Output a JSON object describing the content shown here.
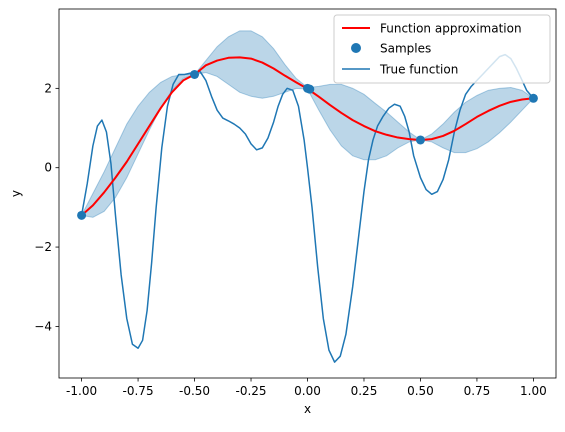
{
  "chart_data": {
    "type": "line",
    "title": "",
    "xlabel": "x",
    "ylabel": "y",
    "xlim": [
      -1.1,
      1.1
    ],
    "ylim": [
      -5.3,
      4.0
    ],
    "grid": false,
    "legend_placement": "top-right",
    "xticks": [
      "-1.00",
      "-0.75",
      "-0.50",
      "-0.25",
      "0.00",
      "0.25",
      "0.50",
      "0.75",
      "1.00"
    ],
    "xtick_values": [
      -1.0,
      -0.75,
      -0.5,
      -0.25,
      0.0,
      0.25,
      0.5,
      0.75,
      1.0
    ],
    "yticks": [
      "−4",
      "−2",
      "0",
      "2"
    ],
    "ytick_values": [
      -4,
      -2,
      0,
      2
    ],
    "series": [
      {
        "name": "Function approximation",
        "color": "#ff0000",
        "kind": "line",
        "x": [
          -1.0,
          -0.95,
          -0.9,
          -0.85,
          -0.8,
          -0.75,
          -0.7,
          -0.65,
          -0.6,
          -0.55,
          -0.5,
          -0.45,
          -0.4,
          -0.35,
          -0.3,
          -0.25,
          -0.2,
          -0.15,
          -0.1,
          -0.05,
          0.0,
          0.05,
          0.1,
          0.15,
          0.2,
          0.25,
          0.3,
          0.35,
          0.4,
          0.45,
          0.5,
          0.55,
          0.6,
          0.65,
          0.7,
          0.75,
          0.8,
          0.85,
          0.9,
          0.95,
          1.0
        ],
        "y": [
          -1.2,
          -0.95,
          -0.62,
          -0.25,
          0.15,
          0.6,
          1.05,
          1.5,
          1.9,
          2.2,
          2.35,
          2.58,
          2.7,
          2.77,
          2.78,
          2.75,
          2.65,
          2.5,
          2.32,
          2.15,
          1.99,
          1.79,
          1.58,
          1.38,
          1.2,
          1.05,
          0.92,
          0.83,
          0.76,
          0.72,
          0.7,
          0.72,
          0.8,
          0.93,
          1.1,
          1.28,
          1.43,
          1.56,
          1.66,
          1.72,
          1.75
        ]
      },
      {
        "name": "Samples",
        "color": "#1f77b4",
        "kind": "scatter",
        "x": [
          -1.0,
          -0.5,
          0.0,
          0.01,
          0.5,
          1.0
        ],
        "y": [
          -1.2,
          2.35,
          2.0,
          1.98,
          0.7,
          1.75
        ]
      },
      {
        "name": "True function",
        "color": "#1f77b4",
        "kind": "line",
        "x": [
          -1.0,
          -0.975,
          -0.95,
          -0.93,
          -0.91,
          -0.89,
          -0.87,
          -0.85,
          -0.825,
          -0.8,
          -0.775,
          -0.75,
          -0.73,
          -0.71,
          -0.69,
          -0.67,
          -0.645,
          -0.62,
          -0.595,
          -0.57,
          -0.545,
          -0.52,
          -0.5,
          -0.475,
          -0.45,
          -0.425,
          -0.4,
          -0.375,
          -0.35,
          -0.325,
          -0.3,
          -0.275,
          -0.25,
          -0.225,
          -0.2,
          -0.175,
          -0.15,
          -0.13,
          -0.11,
          -0.09,
          -0.065,
          -0.04,
          -0.015,
          0.0,
          0.02,
          0.045,
          0.07,
          0.095,
          0.12,
          0.145,
          0.17,
          0.2,
          0.225,
          0.25,
          0.27,
          0.29,
          0.31,
          0.335,
          0.36,
          0.385,
          0.41,
          0.43,
          0.45,
          0.47,
          0.5,
          0.525,
          0.55,
          0.575,
          0.6,
          0.625,
          0.65,
          0.675,
          0.7,
          0.725,
          0.75,
          0.775,
          0.8,
          0.825,
          0.85,
          0.875,
          0.9,
          0.925,
          0.95,
          0.97,
          1.0
        ],
        "y": [
          -1.2,
          -0.4,
          0.55,
          1.05,
          1.2,
          0.9,
          0.1,
          -1.2,
          -2.7,
          -3.8,
          -4.45,
          -4.55,
          -4.35,
          -3.6,
          -2.4,
          -1.0,
          0.5,
          1.55,
          2.1,
          2.35,
          2.35,
          2.38,
          2.4,
          2.42,
          2.2,
          1.8,
          1.45,
          1.25,
          1.18,
          1.1,
          1.0,
          0.85,
          0.6,
          0.45,
          0.5,
          0.75,
          1.15,
          1.55,
          1.85,
          2.0,
          1.95,
          1.55,
          0.7,
          0.0,
          -1.0,
          -2.5,
          -3.8,
          -4.6,
          -4.9,
          -4.75,
          -4.2,
          -3.0,
          -1.8,
          -0.6,
          0.2,
          0.7,
          1.05,
          1.3,
          1.5,
          1.6,
          1.55,
          1.3,
          0.9,
          0.3,
          -0.25,
          -0.55,
          -0.67,
          -0.6,
          -0.3,
          0.2,
          0.9,
          1.45,
          1.85,
          2.05,
          2.2,
          2.35,
          2.5,
          2.65,
          2.8,
          2.85,
          2.75,
          2.5,
          2.2,
          1.95,
          1.75
        ]
      },
      {
        "name": "",
        "color": "#1f77b4",
        "kind": "band",
        "opacity": 0.3,
        "x": [
          -1.0,
          -0.95,
          -0.9,
          -0.85,
          -0.8,
          -0.75,
          -0.7,
          -0.65,
          -0.6,
          -0.55,
          -0.5,
          -0.45,
          -0.4,
          -0.35,
          -0.3,
          -0.25,
          -0.2,
          -0.15,
          -0.1,
          -0.05,
          0.0,
          0.05,
          0.1,
          0.15,
          0.2,
          0.25,
          0.3,
          0.35,
          0.4,
          0.45,
          0.5,
          0.55,
          0.6,
          0.65,
          0.7,
          0.75,
          0.8,
          0.85,
          0.9,
          0.95,
          1.0
        ],
        "lower": [
          -1.2,
          -1.25,
          -1.1,
          -0.75,
          -0.25,
          0.35,
          0.95,
          1.5,
          1.95,
          2.25,
          2.35,
          2.4,
          2.3,
          2.1,
          1.9,
          1.8,
          1.75,
          1.8,
          1.9,
          2.0,
          1.98,
          1.45,
          0.95,
          0.55,
          0.3,
          0.2,
          0.2,
          0.3,
          0.5,
          0.65,
          0.7,
          0.65,
          0.5,
          0.38,
          0.38,
          0.48,
          0.65,
          0.88,
          1.15,
          1.45,
          1.75
        ],
        "upper": [
          -1.2,
          -0.65,
          -0.1,
          0.5,
          1.1,
          1.55,
          1.9,
          2.15,
          2.3,
          2.35,
          2.35,
          2.7,
          3.05,
          3.3,
          3.45,
          3.45,
          3.3,
          3.0,
          2.6,
          2.25,
          2.02,
          2.05,
          2.1,
          2.1,
          2.0,
          1.85,
          1.62,
          1.4,
          1.15,
          0.9,
          0.7,
          0.85,
          1.1,
          1.4,
          1.65,
          1.82,
          1.95,
          2.0,
          2.02,
          1.95,
          1.75
        ]
      }
    ]
  },
  "legend": {
    "items": [
      {
        "label": "Function approximation",
        "color": "#ff0000",
        "kind": "line"
      },
      {
        "label": "Samples",
        "color": "#1f77b4",
        "kind": "marker"
      },
      {
        "label": "True function",
        "color": "#1f77b4",
        "kind": "line"
      }
    ]
  }
}
